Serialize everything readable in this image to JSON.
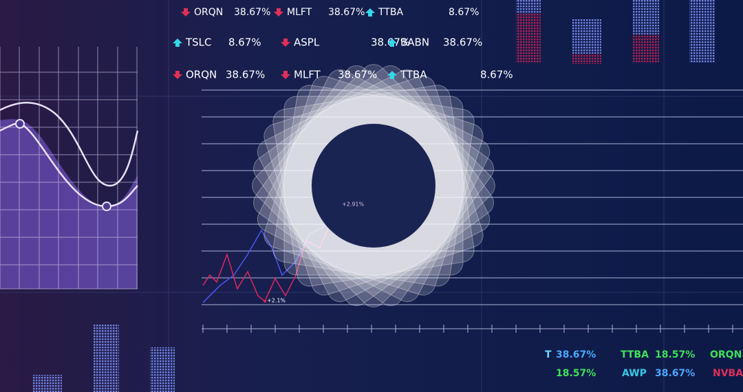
{
  "tickers": [
    [
      {
        "symbol": "ORQN",
        "change": "38.67%",
        "trend": "down"
      },
      {
        "symbol": "MLFT",
        "change": "38.67%",
        "trend": "down"
      },
      {
        "symbol": "TTBA",
        "change": "8.67%",
        "trend": "up"
      }
    ],
    [
      {
        "symbol": "TSLC",
        "change": "8.67%",
        "trend": "up"
      },
      {
        "symbol": "ASPL",
        "change": "38.67%",
        "trend": "down"
      },
      {
        "symbol": "BABN",
        "change": "38.67%",
        "trend": "up"
      }
    ],
    [
      {
        "symbol": "ORQN",
        "change": "38.67%",
        "trend": "down"
      },
      {
        "symbol": "MLFT",
        "change": "38.67%",
        "trend": "down"
      },
      {
        "symbol": "TTBA",
        "change": "8.67%",
        "trend": "up"
      }
    ]
  ],
  "chart_labels": [
    "+2.91%",
    "+2.1%"
  ],
  "ticker_strip": [
    [
      "T",
      "38.67%",
      "TTBA",
      "18.57%",
      "ORQN"
    ],
    [
      "18.57%",
      "AWP",
      "38.67%",
      "NVBA"
    ]
  ]
}
